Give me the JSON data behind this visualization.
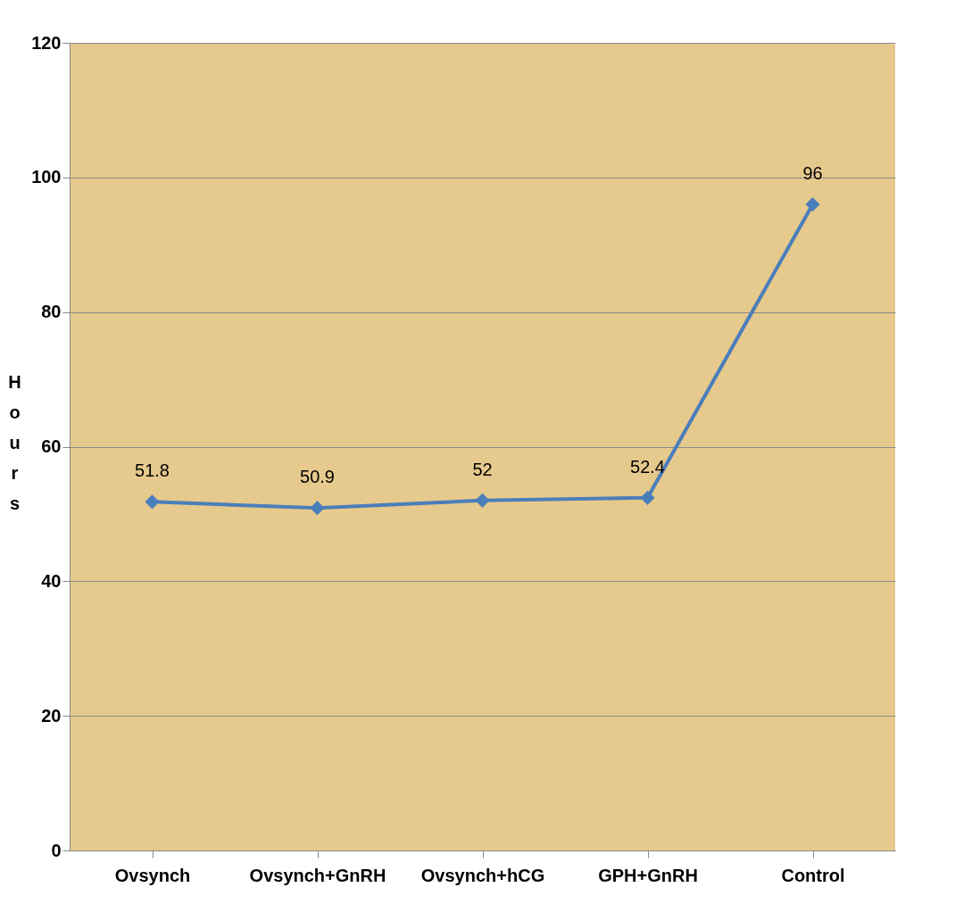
{
  "chart_data": {
    "type": "line",
    "ylabel": "Hours",
    "categories": [
      "Ovsynch",
      "Ovsynch+GnRH",
      "Ovsynch+hCG",
      "GPH+GnRH",
      "Control"
    ],
    "series": [
      {
        "color": "#4a7ebb",
        "values": [
          51.8,
          50.9,
          52,
          52.4,
          96
        ]
      }
    ],
    "ylim": [
      0,
      120
    ],
    "yticks": [
      0,
      20,
      40,
      60,
      80,
      100,
      120
    ],
    "grid": "y",
    "marker": "diamond",
    "line_style": "solid",
    "data_labels": true
  }
}
